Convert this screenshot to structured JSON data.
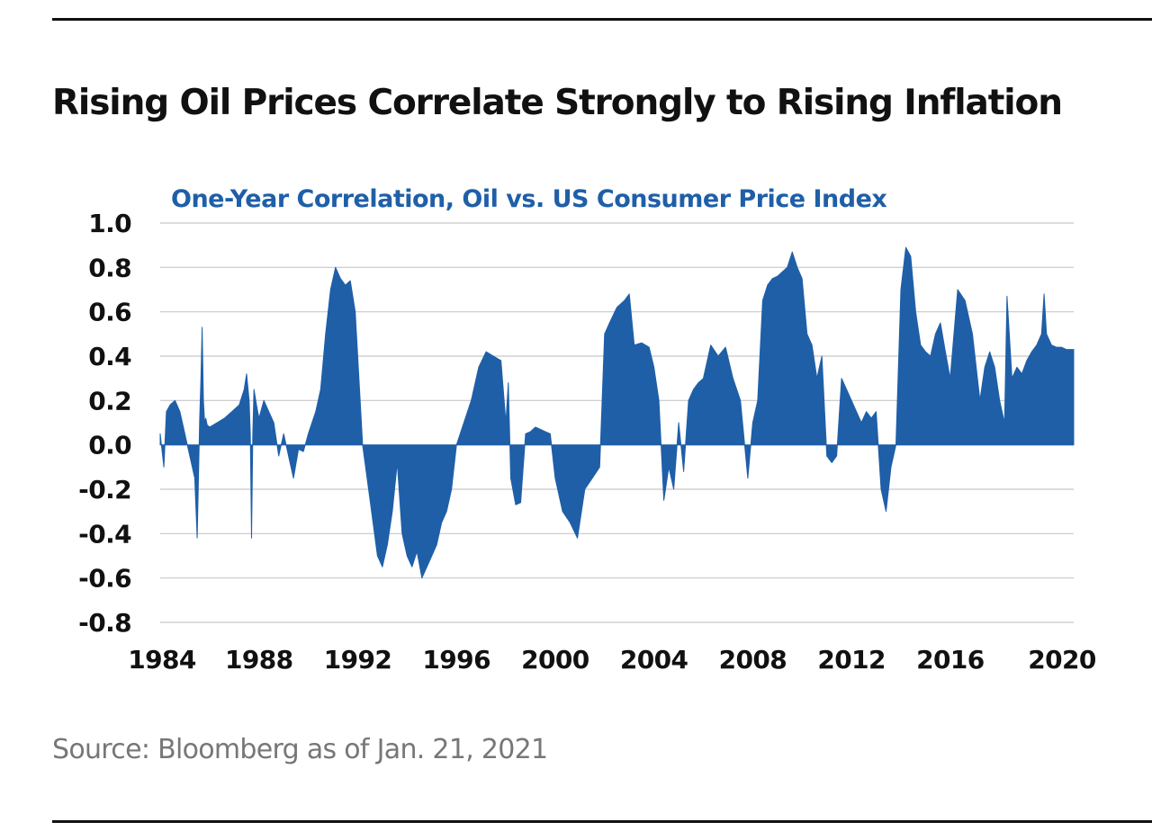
{
  "headline": "Rising Oil Prices Correlate Strongly to Rising Inflation",
  "source": "Source: Bloomberg as of Jan. 21, 2021",
  "chart_data": {
    "type": "area",
    "title": "One-Year Correlation, Oil vs. US Consumer Price Index",
    "xlabel": "",
    "ylabel": "",
    "xlim": [
      1984,
      2021
    ],
    "ylim": [
      -0.8,
      1.0
    ],
    "grid": true,
    "legend": "none",
    "fill_color": "#1f5fa8",
    "x_ticks": [
      1984,
      1988,
      1992,
      1996,
      2000,
      2004,
      2008,
      2012,
      2016,
      2020
    ],
    "y_ticks": [
      -0.8,
      -0.6,
      -0.4,
      -0.2,
      0.0,
      0.2,
      0.4,
      0.6,
      0.8,
      1.0
    ],
    "y_tick_labels": [
      "-0.8",
      "-0.6",
      "-0.4",
      "-0.2",
      "0.0",
      "0.2",
      "0.4",
      "0.6",
      "0.8",
      "1.0"
    ],
    "x_tick_labels": [
      "1984",
      "1988",
      "1992",
      "1996",
      "2000",
      "2004",
      "2008",
      "2012",
      "2016",
      "2020"
    ],
    "series": [
      {
        "x": [
          1984.0,
          1984.15,
          1984.25,
          1984.4,
          1984.6,
          1984.8,
          1985.0,
          1985.2,
          1985.4,
          1985.5,
          1985.6,
          1985.65,
          1985.7,
          1985.75,
          1985.8,
          1985.85,
          1985.9,
          1986.0,
          1986.3,
          1986.6,
          1986.9,
          1987.2,
          1987.4,
          1987.5,
          1987.6,
          1987.65,
          1987.7,
          1987.75,
          1987.8,
          1987.9,
          1988.0,
          1988.2,
          1988.4,
          1988.6,
          1988.8,
          1989.0,
          1989.2,
          1989.4,
          1989.6,
          1989.8,
          1990.0,
          1990.3,
          1990.5,
          1990.7,
          1990.9,
          1991.1,
          1991.3,
          1991.5,
          1991.7,
          1991.9,
          1992.2,
          1992.5,
          1992.8,
          1993.0,
          1993.2,
          1993.4,
          1993.6,
          1993.8,
          1994.0,
          1994.2,
          1994.4,
          1994.6,
          1994.8,
          1995.0,
          1995.2,
          1995.4,
          1995.6,
          1995.8,
          1996.0,
          1996.3,
          1996.6,
          1996.9,
          1997.2,
          1997.5,
          1997.8,
          1998.0,
          1998.1,
          1998.2,
          1998.4,
          1998.6,
          1998.8,
          1999.0,
          1999.2,
          1999.4,
          1999.6,
          1999.8,
          2000.0,
          2000.3,
          2000.6,
          2000.9,
          2001.2,
          2001.5,
          2001.8,
          2002.0,
          2002.2,
          2002.5,
          2002.8,
          2003.0,
          2003.2,
          2003.5,
          2003.8,
          2004.0,
          2004.2,
          2004.4,
          2004.6,
          2004.8,
          2005.0,
          2005.2,
          2005.4,
          2005.6,
          2005.8,
          2006.0,
          2006.3,
          2006.6,
          2006.9,
          2007.2,
          2007.5,
          2007.8,
          2008.0,
          2008.2,
          2008.4,
          2008.6,
          2008.8,
          2009.0,
          2009.2,
          2009.4,
          2009.6,
          2009.8,
          2010.0,
          2010.2,
          2010.4,
          2010.6,
          2010.8,
          2011.0,
          2011.2,
          2011.4,
          2011.6,
          2011.8,
          2012.0,
          2012.2,
          2012.4,
          2012.6,
          2012.8,
          2013.0,
          2013.2,
          2013.4,
          2013.6,
          2013.8,
          2014.0,
          2014.2,
          2014.4,
          2014.6,
          2014.8,
          2015.0,
          2015.2,
          2015.4,
          2015.6,
          2015.8,
          2016.0,
          2016.3,
          2016.6,
          2016.9,
          2017.2,
          2017.4,
          2017.6,
          2017.8,
          2018.0,
          2018.1,
          2018.2,
          2018.3,
          2018.5,
          2018.7,
          2018.9,
          2019.1,
          2019.3,
          2019.5,
          2019.7,
          2019.8,
          2019.9,
          2020.1,
          2020.3,
          2020.5,
          2020.7,
          2020.9,
          2021.0
        ],
        "values": [
          0.05,
          -0.1,
          0.15,
          0.18,
          0.2,
          0.15,
          0.05,
          -0.05,
          -0.15,
          -0.42,
          0.12,
          0.3,
          0.53,
          0.2,
          0.1,
          0.12,
          0.09,
          0.08,
          0.1,
          0.12,
          0.15,
          0.18,
          0.25,
          0.32,
          0.2,
          0.05,
          -0.42,
          0.05,
          0.25,
          0.18,
          0.12,
          0.2,
          0.15,
          0.1,
          -0.05,
          0.05,
          -0.05,
          -0.15,
          -0.02,
          -0.03,
          0.05,
          0.15,
          0.25,
          0.5,
          0.7,
          0.8,
          0.75,
          0.72,
          0.74,
          0.6,
          0.0,
          -0.25,
          -0.5,
          -0.55,
          -0.45,
          -0.3,
          -0.08,
          -0.4,
          -0.5,
          -0.55,
          -0.48,
          -0.6,
          -0.55,
          -0.5,
          -0.45,
          -0.35,
          -0.3,
          -0.2,
          0.0,
          0.1,
          0.2,
          0.35,
          0.42,
          0.4,
          0.38,
          0.1,
          0.28,
          -0.15,
          -0.27,
          -0.26,
          0.05,
          0.06,
          0.08,
          0.07,
          0.06,
          0.05,
          -0.15,
          -0.3,
          -0.35,
          -0.42,
          -0.2,
          -0.15,
          -0.1,
          0.5,
          0.55,
          0.62,
          0.65,
          0.68,
          0.45,
          0.46,
          0.44,
          0.35,
          0.2,
          -0.25,
          -0.1,
          -0.2,
          0.1,
          -0.12,
          0.2,
          0.25,
          0.28,
          0.3,
          0.45,
          0.4,
          0.44,
          0.3,
          0.2,
          -0.15,
          0.1,
          0.2,
          0.65,
          0.72,
          0.75,
          0.76,
          0.78,
          0.8,
          0.87,
          0.8,
          0.75,
          0.5,
          0.45,
          0.3,
          0.4,
          -0.05,
          -0.08,
          -0.05,
          0.3,
          0.25,
          0.2,
          0.15,
          0.1,
          0.15,
          0.12,
          0.15,
          -0.2,
          -0.3,
          -0.1,
          0.0,
          0.7,
          0.89,
          0.85,
          0.6,
          0.45,
          0.42,
          0.4,
          0.5,
          0.55,
          0.42,
          0.3,
          0.7,
          0.65,
          0.5,
          0.2,
          0.35,
          0.42,
          0.35,
          0.2,
          0.15,
          0.1,
          0.67,
          0.3,
          0.35,
          0.32,
          0.38,
          0.42,
          0.45,
          0.5,
          0.68,
          0.5,
          0.45,
          0.44,
          0.44,
          0.43,
          0.43,
          0.43
        ]
      }
    ]
  }
}
